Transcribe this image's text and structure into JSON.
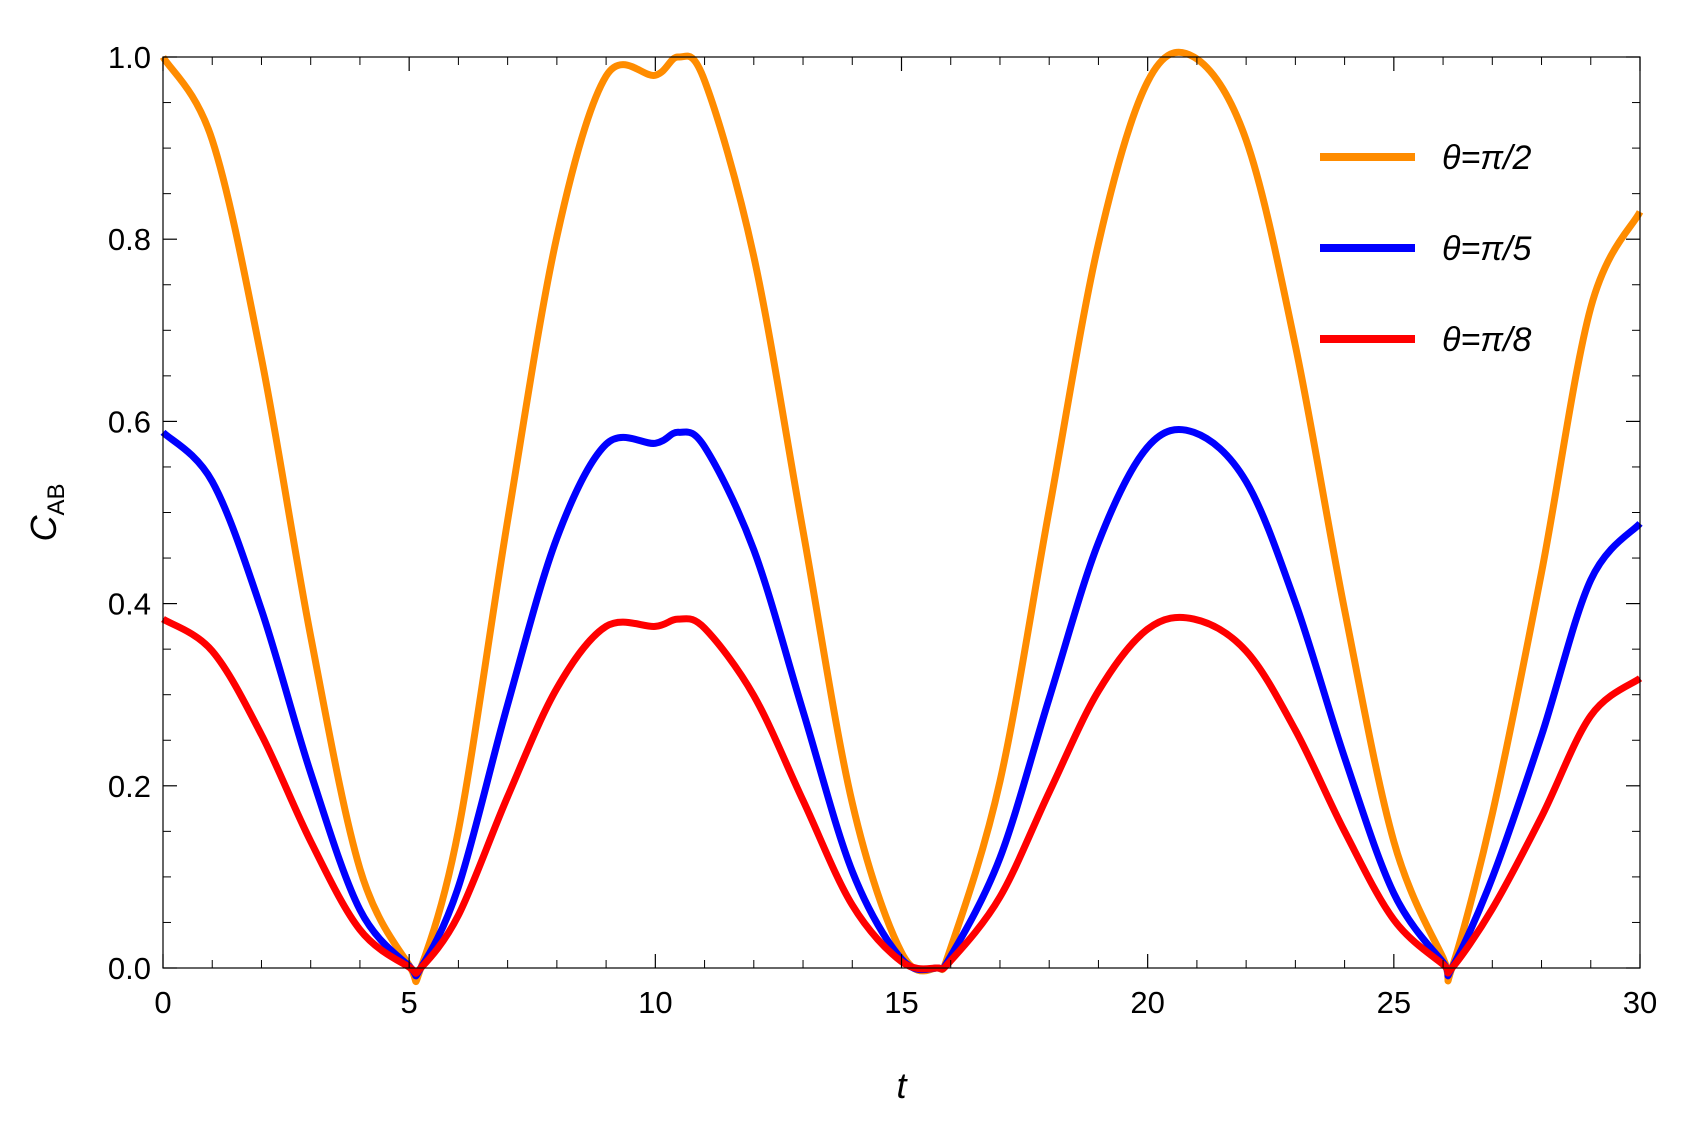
{
  "chart_data": {
    "type": "line",
    "title": "",
    "xlabel": "t",
    "ylabel": {
      "main": "C",
      "sub": "AB"
    },
    "xlim": [
      0,
      30
    ],
    "ylim": [
      0,
      1
    ],
    "xticks": [
      0,
      5,
      10,
      15,
      20,
      25,
      30
    ],
    "xtick_labels": [
      "0",
      "5",
      "10",
      "15",
      "20",
      "25",
      "30"
    ],
    "yticks": [
      0,
      0.2,
      0.4,
      0.6,
      0.8,
      1
    ],
    "ytick_labels": [
      "0.0",
      "0.2",
      "0.4",
      "0.6",
      "0.8",
      "1.0"
    ],
    "grid": false,
    "legend_position": "top-right",
    "series": [
      {
        "name": "θ=π/2",
        "color": "#ff8c00",
        "x": [
          0,
          1,
          2,
          3,
          4,
          5,
          5.236,
          6,
          7,
          8,
          9,
          10,
          10.47,
          11,
          12,
          13,
          14,
          15,
          15.71,
          16,
          17,
          18,
          19,
          20,
          20.94,
          22,
          23,
          24,
          25,
          26,
          26.18,
          27,
          28,
          29,
          30
        ],
        "y": [
          1.0,
          0.909,
          0.669,
          0.364,
          0.109,
          0.003,
          0.0,
          0.151,
          0.491,
          0.803,
          0.979,
          0.98,
          1.0,
          0.974,
          0.781,
          0.48,
          0.181,
          0.017,
          0.0,
          0.022,
          0.205,
          0.503,
          0.795,
          0.973,
          1.0,
          0.909,
          0.683,
          0.393,
          0.139,
          0.011,
          0.0,
          0.169,
          0.434,
          0.725,
          0.83
        ]
      },
      {
        "name": "θ=π/5",
        "color": "#0000ff",
        "x": [
          0,
          1,
          2,
          3,
          4,
          5,
          5.236,
          6,
          7,
          8,
          9,
          10,
          10.47,
          11,
          12,
          13,
          14,
          15,
          15.71,
          16,
          17,
          18,
          19,
          20,
          20.94,
          22,
          23,
          24,
          25,
          26,
          26.18,
          27,
          28,
          29,
          30
        ],
        "y": [
          0.588,
          0.534,
          0.393,
          0.214,
          0.064,
          0.002,
          0.0,
          0.089,
          0.289,
          0.472,
          0.575,
          0.576,
          0.588,
          0.572,
          0.459,
          0.282,
          0.106,
          0.01,
          0.0,
          0.013,
          0.121,
          0.296,
          0.467,
          0.572,
          0.588,
          0.534,
          0.401,
          0.231,
          0.082,
          0.006,
          0.0,
          0.099,
          0.255,
          0.426,
          0.488
        ]
      },
      {
        "name": "θ=π/8",
        "color": "#ff0000",
        "x": [
          0,
          1,
          2,
          3,
          4,
          5,
          5.236,
          6,
          7,
          8,
          9,
          10,
          10.47,
          11,
          12,
          13,
          14,
          15,
          15.71,
          16,
          17,
          18,
          19,
          20,
          20.94,
          22,
          23,
          24,
          25,
          26,
          26.18,
          27,
          28,
          29,
          30
        ],
        "y": [
          0.383,
          0.348,
          0.256,
          0.139,
          0.042,
          0.001,
          0.0,
          0.058,
          0.188,
          0.307,
          0.375,
          0.375,
          0.383,
          0.373,
          0.299,
          0.184,
          0.069,
          0.007,
          0.0,
          0.008,
          0.078,
          0.193,
          0.304,
          0.372,
          0.383,
          0.348,
          0.261,
          0.15,
          0.053,
          0.004,
          0.0,
          0.065,
          0.166,
          0.277,
          0.318
        ]
      }
    ]
  }
}
